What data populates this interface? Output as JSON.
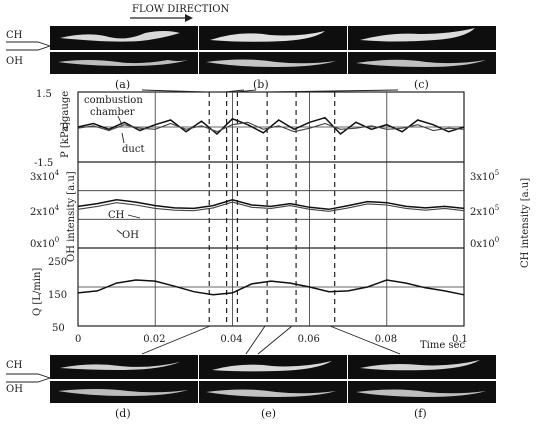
{
  "header": {
    "flow_direction": "FLOW DIRECTION"
  },
  "image_rows": {
    "top": {
      "row_labels": [
        "CH",
        "OH"
      ],
      "panels": [
        {
          "label": "(a)"
        },
        {
          "label": "(b)"
        },
        {
          "label": "(c)"
        }
      ]
    },
    "bottom": {
      "row_labels": [
        "CH",
        "OH"
      ],
      "panels": [
        {
          "label": "(d)"
        },
        {
          "label": "(e)"
        },
        {
          "label": "(f)"
        }
      ]
    }
  },
  "chart_data": {
    "type": "line",
    "x_axis": {
      "label": "Time sec",
      "range": [
        0,
        0.1
      ],
      "ticks": [
        0,
        0.02,
        0.04,
        0.06,
        0.08,
        0.1
      ],
      "tick_labels": [
        "0",
        "0.02",
        "0.04",
        "0.06",
        "0.08",
        "0.1"
      ]
    },
    "marker_times": [
      0.034,
      0.0385,
      0.0413,
      0.049,
      0.0565,
      0.0665
    ],
    "panels": [
      {
        "id": "pressure",
        "ylabel": "P [kPa]gauge",
        "ylim": [
          -1.5,
          1.5
        ],
        "yticks": [
          -1.5,
          0,
          1.5
        ],
        "ytick_labels": [
          "-1.5",
          "0",
          "1.5"
        ],
        "annotations": [
          "combustion",
          "chamber",
          "duct"
        ],
        "series": [
          {
            "name": "combustion chamber",
            "x": [
              0,
              0.004,
              0.008,
              0.012,
              0.016,
              0.02,
              0.024,
              0.028,
              0.032,
              0.036,
              0.04,
              0.044,
              0.048,
              0.052,
              0.056,
              0.06,
              0.064,
              0.068,
              0.072,
              0.076,
              0.08,
              0.084,
              0.088,
              0.092,
              0.096,
              0.1
            ],
            "y": [
              0,
              0.15,
              -0.1,
              0.2,
              -0.15,
              0.1,
              0.3,
              -0.2,
              0.25,
              -0.3,
              0.35,
              0.1,
              -0.25,
              0.3,
              -0.1,
              0.2,
              0.4,
              -0.3,
              0.2,
              -0.1,
              0.1,
              -0.2,
              0.3,
              0.1,
              -0.2,
              0
            ]
          },
          {
            "name": "duct",
            "x": [
              0,
              0.004,
              0.008,
              0.012,
              0.016,
              0.02,
              0.024,
              0.028,
              0.032,
              0.036,
              0.04,
              0.044,
              0.048,
              0.052,
              0.056,
              0.06,
              0.064,
              0.068,
              0.072,
              0.076,
              0.08,
              0.084,
              0.088,
              0.092,
              0.096,
              0.1
            ],
            "y": [
              -0.05,
              0.05,
              -0.15,
              0.1,
              -0.05,
              -0.1,
              0.15,
              -0.1,
              0.05,
              -0.2,
              0.1,
              0.2,
              -0.1,
              0.05,
              -0.2,
              -0.05,
              0.15,
              -0.1,
              -0.05,
              0.05,
              -0.1,
              -0.05,
              0.1,
              -0.15,
              -0.05,
              -0.1
            ]
          }
        ]
      },
      {
        "id": "intensity",
        "ylabel_left": "OH intensity [a.u]",
        "ylabel_right": "CH intensity [a.u]",
        "ylim_left": [
          0,
          30000
        ],
        "ylim_right": [
          0,
          300000
        ],
        "yticks_left": [
          0,
          10000,
          20000,
          30000
        ],
        "ytick_labels_left": [
          {
            "mantissa": "0x10",
            "exp": "0"
          },
          {
            "mantissa": "",
            "exp": ""
          },
          {
            "mantissa": "2x10",
            "exp": "4"
          },
          {
            "mantissa": "3x10",
            "exp": "4"
          }
        ],
        "ytick_labels_right": [
          {
            "mantissa": "0x10",
            "exp": "0"
          },
          {
            "mantissa": "2x10",
            "exp": "5"
          },
          {
            "mantissa": "3x10",
            "exp": "5"
          }
        ],
        "yticks_right": [
          0,
          200000,
          300000
        ],
        "annotations": [
          "CH",
          "OH"
        ],
        "series": [
          {
            "name": "CH",
            "x": [
              0,
              0.005,
              0.01,
              0.015,
              0.02,
              0.025,
              0.03,
              0.035,
              0.04,
              0.045,
              0.05,
              0.055,
              0.06,
              0.065,
              0.07,
              0.075,
              0.08,
              0.085,
              0.09,
              0.095,
              0.1
            ],
            "y": [
              14500,
              15500,
              16800,
              16000,
              14800,
              14000,
              13800,
              14800,
              16800,
              15000,
              14500,
              15500,
              14200,
              13500,
              14800,
              16200,
              15800,
              14500,
              14000,
              14500,
              13800
            ]
          },
          {
            "name": "OH",
            "x": [
              0,
              0.005,
              0.01,
              0.015,
              0.02,
              0.025,
              0.03,
              0.035,
              0.04,
              0.045,
              0.05,
              0.055,
              0.06,
              0.065,
              0.07,
              0.075,
              0.08,
              0.085,
              0.09,
              0.095,
              0.1
            ],
            "y": [
              13500,
              14500,
              15800,
              15000,
              13800,
              13200,
              13000,
              14000,
              16000,
              14200,
              13800,
              14800,
              13500,
              12800,
              14000,
              15400,
              15000,
              13800,
              13200,
              13800,
              13000
            ]
          }
        ]
      },
      {
        "id": "flow",
        "ylabel": "Q [L/min]",
        "ylim": [
          50,
          250
        ],
        "yticks": [
          50,
          150,
          250
        ],
        "ytick_labels": [
          "50",
          "150",
          "250"
        ],
        "series": [
          {
            "name": "Q",
            "x": [
              0,
              0.005,
              0.01,
              0.015,
              0.02,
              0.025,
              0.03,
              0.035,
              0.04,
              0.045,
              0.05,
              0.055,
              0.06,
              0.065,
              0.07,
              0.075,
              0.08,
              0.085,
              0.09,
              0.095,
              0.1
            ],
            "y": [
              135,
              140,
              160,
              168,
              165,
              152,
              138,
              130,
              135,
              158,
              165,
              160,
              150,
              138,
              140,
              150,
              168,
              160,
              148,
              140,
              130
            ]
          }
        ]
      }
    ]
  }
}
